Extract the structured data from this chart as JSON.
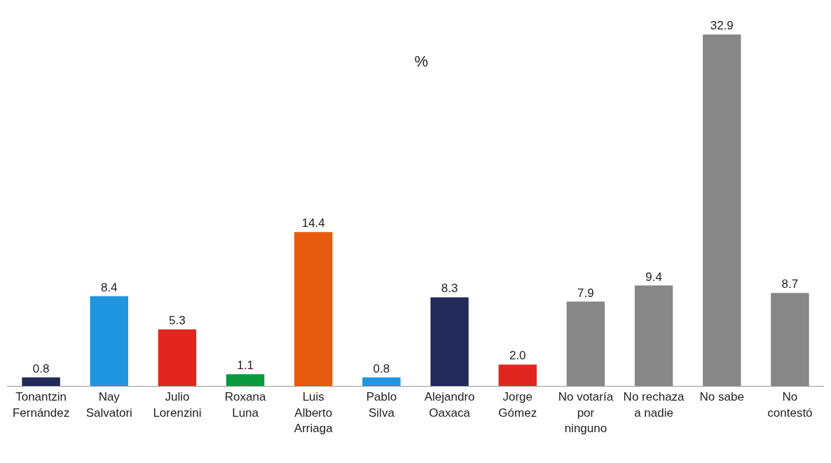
{
  "chart_data": {
    "type": "bar",
    "title": "%",
    "categories": [
      "Tonantzin Fernández",
      "Nay Salvatori",
      "Julio Lorenzini",
      "Roxana Luna",
      "Luis Alberto Arriaga",
      "Pablo Silva",
      "Alejandro Oaxaca",
      "Jorge Gómez",
      "No votaría por ninguno",
      "No rechaza a nadie",
      "No sabe",
      "No contestó"
    ],
    "values": [
      0.8,
      8.4,
      5.3,
      1.1,
      14.4,
      0.8,
      8.3,
      2.0,
      7.9,
      9.4,
      32.9,
      8.7
    ],
    "colors": [
      "#222b59",
      "#2196e0",
      "#e0261e",
      "#0a9a3d",
      "#e85a0e",
      "#2196e0",
      "#222b59",
      "#e0261e",
      "#878787",
      "#878787",
      "#878787",
      "#878787"
    ],
    "value_labels": [
      "0.8",
      "8.4",
      "5.3",
      "1.1",
      "14.4",
      "0.8",
      "8.3",
      "2.0",
      "7.9",
      "9.4",
      "32.9",
      "8.7"
    ],
    "grid": false,
    "legend": false
  }
}
